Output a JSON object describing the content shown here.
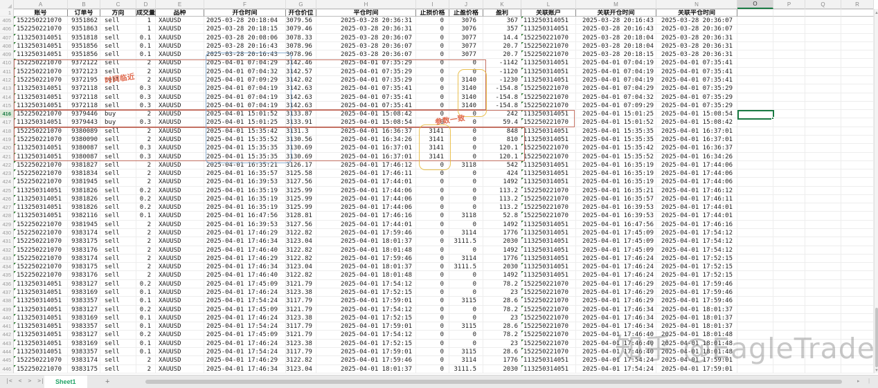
{
  "column_letters": [
    "A",
    "B",
    "C",
    "D",
    "E",
    "F",
    "G",
    "H",
    "I",
    "J",
    "K",
    "L",
    "M",
    "N",
    "O",
    "P",
    "Q",
    "R"
  ],
  "selected_column": "O",
  "selected_cell": {
    "row": 416,
    "col": "O"
  },
  "header_row_number": "1",
  "headers": [
    "账号",
    "订单号",
    "方向",
    "成交量",
    "品种",
    "开仓时间",
    "开仓价位",
    "平仓时间",
    "止损价格",
    "止盈价格",
    "盈利",
    "关联账户",
    "关联开仓时间",
    "关联平仓时间"
  ],
  "rows": [
    {
      "n": 405,
      "c": [
        "152250221070",
        "9351862",
        "sell",
        "1",
        "XAUUSD",
        "2025-03-28 20:18:04",
        "3079.56",
        "2025-03-28 20:36:31",
        "0",
        "3076",
        "367",
        "113250314051",
        "2025-03-28 20:16:43",
        "2025-03-28 20:36:07"
      ]
    },
    {
      "n": 406,
      "c": [
        "152250221070",
        "9351863",
        "sell",
        "1",
        "XAUUSD",
        "2025-03-28 20:18:15",
        "3079.46",
        "2025-03-28 20:36:31",
        "0",
        "3076",
        "357",
        "113250314051",
        "2025-03-28 20:16:43",
        "2025-03-28 20:36:07"
      ]
    },
    {
      "n": 407,
      "c": [
        "113250314051",
        "9351818",
        "sell",
        "0.1",
        "XAUUSD",
        "2025-03-28 20:08:06",
        "3078.33",
        "2025-03-28 20:36:07",
        "0",
        "3077",
        "14.4",
        "152250221070",
        "2025-03-28 20:18:04",
        "2025-03-28 20:36:31"
      ]
    },
    {
      "n": 408,
      "c": [
        "113250314051",
        "9351856",
        "sell",
        "0.1",
        "XAUUSD",
        "2025-03-28 20:16:43",
        "3078.96",
        "2025-03-28 20:36:07",
        "0",
        "3077",
        "20.7",
        "152250221070",
        "2025-03-28 20:18:04",
        "2025-03-28 20:36:31"
      ]
    },
    {
      "n": 409,
      "c": [
        "113250314051",
        "9351856",
        "sell",
        "0.1",
        "XAUUSD",
        "2025-03-28 20:16:43",
        "3078.96",
        "2025-03-28 20:36:07",
        "0",
        "3077",
        "20.7",
        "152250221070",
        "2025-03-28 20:18:15",
        "2025-03-28 20:36:31"
      ]
    },
    {
      "n": 410,
      "c": [
        "152250221070",
        "9372122",
        "sell",
        "2",
        "XAUUSD",
        "2025-04-01 07:04:29",
        "3142.46",
        "2025-04-01 07:35:29",
        "0",
        "0",
        "-1142",
        "113250314051",
        "2025-04-01 07:04:19",
        "2025-04-01 07:35:41"
      ]
    },
    {
      "n": 411,
      "c": [
        "152250221070",
        "9372123",
        "sell",
        "2",
        "XAUUSD",
        "2025-04-01 07:04:32",
        "3142.57",
        "2025-04-01 07:35:29",
        "0",
        "0",
        "-1120",
        "113250314051",
        "2025-04-01 07:04:19",
        "2025-04-01 07:35:41"
      ]
    },
    {
      "n": 412,
      "c": [
        "152250221070",
        "9372195",
        "sell",
        "2",
        "XAUUSD",
        "2025-04-01 07:09:29",
        "3142.02",
        "2025-04-01 07:35:29",
        "0",
        "3140",
        "-1230",
        "113250314051",
        "2025-04-01 07:04:19",
        "2025-04-01 07:35:41"
      ]
    },
    {
      "n": 413,
      "c": [
        "113250314051",
        "9372118",
        "sell",
        "0.3",
        "XAUUSD",
        "2025-04-01 07:04:19",
        "3142.63",
        "2025-04-01 07:35:41",
        "0",
        "3140",
        "-154.8",
        "152250221070",
        "2025-04-01 07:04:29",
        "2025-04-01 07:35:29"
      ]
    },
    {
      "n": 414,
      "c": [
        "113250314051",
        "9372118",
        "sell",
        "0.3",
        "XAUUSD",
        "2025-04-01 07:04:19",
        "3142.63",
        "2025-04-01 07:35:41",
        "0",
        "3140",
        "-154.8",
        "152250221070",
        "2025-04-01 07:04:32",
        "2025-04-01 07:35:29"
      ]
    },
    {
      "n": 415,
      "c": [
        "113250314051",
        "9372118",
        "sell",
        "0.3",
        "XAUUSD",
        "2025-04-01 07:04:19",
        "3142.63",
        "2025-04-01 07:35:41",
        "0",
        "3140",
        "-154.8",
        "152250221070",
        "2025-04-01 07:09:29",
        "2025-04-01 07:35:29"
      ]
    },
    {
      "n": 416,
      "c": [
        "152250221070",
        "9379446",
        "buy",
        "2",
        "XAUUSD",
        "2025-04-01 15:01:52",
        "3133.87",
        "2025-04-01 15:08:42",
        "0",
        "0",
        "242",
        "113250314051",
        "2025-04-01 15:01:25",
        "2025-04-01 15:08:54"
      ]
    },
    {
      "n": 417,
      "c": [
        "113250314051",
        "9379443",
        "buy",
        "0.3",
        "XAUUSD",
        "2025-04-01 15:01:25",
        "3133.91",
        "2025-04-01 15:08:54",
        "0",
        "0",
        "59.4",
        "152250221070",
        "2025-04-01 15:01:52",
        "2025-04-01 15:08:42"
      ]
    },
    {
      "n": 418,
      "c": [
        "152250221070",
        "9380089",
        "sell",
        "2",
        "XAUUSD",
        "2025-04-01 15:35:42",
        "3131.3",
        "2025-04-01 16:36:37",
        "3141",
        "0",
        "848",
        "113250314051",
        "2025-04-01 15:35:35",
        "2025-04-01 16:37:01"
      ]
    },
    {
      "n": 419,
      "c": [
        "152250221070",
        "9380090",
        "sell",
        "2",
        "XAUUSD",
        "2025-04-01 15:35:52",
        "3130.56",
        "2025-04-01 16:34:26",
        "3141",
        "0",
        "810",
        "113250314051",
        "2025-04-01 15:35:35",
        "2025-04-01 16:37:01"
      ]
    },
    {
      "n": 420,
      "c": [
        "113250314051",
        "9380087",
        "sell",
        "0.3",
        "XAUUSD",
        "2025-04-01 15:35:35",
        "3130.69",
        "2025-04-01 16:37:01",
        "3141",
        "0",
        "120.1",
        "152250221070",
        "2025-04-01 15:35:42",
        "2025-04-01 16:36:37"
      ]
    },
    {
      "n": 421,
      "c": [
        "113250314051",
        "9380087",
        "sell",
        "0.3",
        "XAUUSD",
        "2025-04-01 15:35:35",
        "3130.69",
        "2025-04-01 16:37:01",
        "3141",
        "0",
        "120.1",
        "152250221070",
        "2025-04-01 15:35:52",
        "2025-04-01 16:34:26"
      ]
    },
    {
      "n": 422,
      "c": [
        "152250221070",
        "9381827",
        "sell",
        "2",
        "XAUUSD",
        "2025-04-01 16:35:21",
        "3126.17",
        "2025-04-01 17:46:12",
        "0",
        "3118",
        "542",
        "113250314051",
        "2025-04-01 16:35:19",
        "2025-04-01 17:44:06"
      ]
    },
    {
      "n": 423,
      "c": [
        "152250221070",
        "9381834",
        "sell",
        "2",
        "XAUUSD",
        "2025-04-01 16:35:57",
        "3125.58",
        "2025-04-01 17:46:11",
        "0",
        "0",
        "424",
        "113250314051",
        "2025-04-01 16:35:19",
        "2025-04-01 17:44:06"
      ]
    },
    {
      "n": 424,
      "c": [
        "152250221070",
        "9381945",
        "sell",
        "2",
        "XAUUSD",
        "2025-04-01 16:39:53",
        "3127.56",
        "2025-04-01 17:44:01",
        "0",
        "0",
        "1492",
        "113250314051",
        "2025-04-01 16:35:19",
        "2025-04-01 17:44:06"
      ]
    },
    {
      "n": 425,
      "c": [
        "113250314051",
        "9381826",
        "sell",
        "0.2",
        "XAUUSD",
        "2025-04-01 16:35:19",
        "3125.99",
        "2025-04-01 17:44:06",
        "0",
        "0",
        "113.2",
        "152250221070",
        "2025-04-01 16:35:21",
        "2025-04-01 17:46:12"
      ]
    },
    {
      "n": 426,
      "c": [
        "113250314051",
        "9381826",
        "sell",
        "0.2",
        "XAUUSD",
        "2025-04-01 16:35:19",
        "3125.99",
        "2025-04-01 17:44:06",
        "0",
        "0",
        "113.2",
        "152250221070",
        "2025-04-01 16:35:57",
        "2025-04-01 17:46:11"
      ]
    },
    {
      "n": 427,
      "c": [
        "113250314051",
        "9381826",
        "sell",
        "0.2",
        "XAUUSD",
        "2025-04-01 16:35:19",
        "3125.99",
        "2025-04-01 17:44:06",
        "0",
        "0",
        "113.2",
        "152250221070",
        "2025-04-01 16:39:53",
        "2025-04-01 17:44:01"
      ]
    },
    {
      "n": 428,
      "c": [
        "113250314051",
        "9382116",
        "sell",
        "0.1",
        "XAUUSD",
        "2025-04-01 16:47:56",
        "3128.81",
        "2025-04-01 17:46:16",
        "0",
        "3118",
        "52.8",
        "152250221070",
        "2025-04-01 16:39:53",
        "2025-04-01 17:44:01"
      ]
    },
    {
      "n": 429,
      "c": [
        "152250221070",
        "9381945",
        "sell",
        "2",
        "XAUUSD",
        "2025-04-01 16:39:53",
        "3127.56",
        "2025-04-01 17:44:01",
        "0",
        "0",
        "1492",
        "113250314051",
        "2025-04-01 16:47:56",
        "2025-04-01 17:46:16"
      ]
    },
    {
      "n": 430,
      "c": [
        "152250221070",
        "9383174",
        "sell",
        "2",
        "XAUUSD",
        "2025-04-01 17:46:29",
        "3122.82",
        "2025-04-01 17:59:46",
        "0",
        "3114",
        "1776",
        "113250314051",
        "2025-04-01 17:45:09",
        "2025-04-01 17:54:12"
      ]
    },
    {
      "n": 431,
      "c": [
        "152250221070",
        "9383175",
        "sell",
        "2",
        "XAUUSD",
        "2025-04-01 17:46:34",
        "3123.04",
        "2025-04-01 18:01:37",
        "0",
        "3111.5",
        "2030",
        "113250314051",
        "2025-04-01 17:45:09",
        "2025-04-01 17:54:12"
      ]
    },
    {
      "n": 432,
      "c": [
        "152250221070",
        "9383176",
        "sell",
        "2",
        "XAUUSD",
        "2025-04-01 17:46:40",
        "3122.82",
        "2025-04-01 18:01:48",
        "0",
        "0",
        "1492",
        "113250314051",
        "2025-04-01 17:45:09",
        "2025-04-01 17:54:12"
      ]
    },
    {
      "n": 433,
      "c": [
        "152250221070",
        "9383174",
        "sell",
        "2",
        "XAUUSD",
        "2025-04-01 17:46:29",
        "3122.82",
        "2025-04-01 17:59:46",
        "0",
        "3114",
        "1776",
        "113250314051",
        "2025-04-01 17:46:24",
        "2025-04-01 17:52:15"
      ]
    },
    {
      "n": 434,
      "c": [
        "152250221070",
        "9383175",
        "sell",
        "2",
        "XAUUSD",
        "2025-04-01 17:46:34",
        "3123.04",
        "2025-04-01 18:01:37",
        "0",
        "3111.5",
        "2030",
        "113250314051",
        "2025-04-01 17:46:24",
        "2025-04-01 17:52:15"
      ]
    },
    {
      "n": 435,
      "c": [
        "152250221070",
        "9383176",
        "sell",
        "2",
        "XAUUSD",
        "2025-04-01 17:46:40",
        "3122.82",
        "2025-04-01 18:01:48",
        "0",
        "0",
        "1492",
        "113250314051",
        "2025-04-01 17:46:24",
        "2025-04-01 17:52:15"
      ]
    },
    {
      "n": 436,
      "c": [
        "113250314051",
        "9383127",
        "sell",
        "0.2",
        "XAUUSD",
        "2025-04-01 17:45:09",
        "3121.79",
        "2025-04-01 17:54:12",
        "0",
        "0",
        "78.2",
        "152250221070",
        "2025-04-01 17:46:29",
        "2025-04-01 17:59:46"
      ]
    },
    {
      "n": 437,
      "c": [
        "113250314051",
        "9383169",
        "sell",
        "0.1",
        "XAUUSD",
        "2025-04-01 17:46:24",
        "3123.38",
        "2025-04-01 17:52:15",
        "0",
        "0",
        "23",
        "152250221070",
        "2025-04-01 17:46:29",
        "2025-04-01 17:59:46"
      ]
    },
    {
      "n": 438,
      "c": [
        "113250314051",
        "9383357",
        "sell",
        "0.1",
        "XAUUSD",
        "2025-04-01 17:54:24",
        "3117.79",
        "2025-04-01 17:59:01",
        "0",
        "3115",
        "28.6",
        "152250221070",
        "2025-04-01 17:46:29",
        "2025-04-01 17:59:46"
      ]
    },
    {
      "n": 439,
      "c": [
        "113250314051",
        "9383127",
        "sell",
        "0.2",
        "XAUUSD",
        "2025-04-01 17:45:09",
        "3121.79",
        "2025-04-01 17:54:12",
        "0",
        "0",
        "78.2",
        "152250221070",
        "2025-04-01 17:46:34",
        "2025-04-01 18:01:37"
      ]
    },
    {
      "n": 440,
      "c": [
        "113250314051",
        "9383169",
        "sell",
        "0.1",
        "XAUUSD",
        "2025-04-01 17:46:24",
        "3123.38",
        "2025-04-01 17:52:15",
        "0",
        "0",
        "23",
        "152250221070",
        "2025-04-01 17:46:34",
        "2025-04-01 18:01:37"
      ]
    },
    {
      "n": 441,
      "c": [
        "113250314051",
        "9383357",
        "sell",
        "0.1",
        "XAUUSD",
        "2025-04-01 17:54:24",
        "3117.79",
        "2025-04-01 17:59:01",
        "0",
        "3115",
        "28.6",
        "152250221070",
        "2025-04-01 17:46:34",
        "2025-04-01 18:01:37"
      ]
    },
    {
      "n": 442,
      "c": [
        "113250314051",
        "9383127",
        "sell",
        "0.2",
        "XAUUSD",
        "2025-04-01 17:45:09",
        "3121.79",
        "2025-04-01 17:54:12",
        "0",
        "0",
        "78.2",
        "152250221070",
        "2025-04-01 17:46:40",
        "2025-04-01 18:01:48"
      ]
    },
    {
      "n": 443,
      "c": [
        "113250314051",
        "9383169",
        "sell",
        "0.1",
        "XAUUSD",
        "2025-04-01 17:46:24",
        "3123.38",
        "2025-04-01 17:52:15",
        "0",
        "0",
        "23",
        "152250221070",
        "2025-04-01 17:46:40",
        "2025-04-01 18:01:48"
      ]
    },
    {
      "n": 444,
      "c": [
        "113250314051",
        "9383357",
        "sell",
        "0.1",
        "XAUUSD",
        "2025-04-01 17:54:24",
        "3117.79",
        "2025-04-01 17:59:01",
        "0",
        "3115",
        "28.6",
        "152250221070",
        "2025-04-01 17:46:40",
        "2025-04-01 18:01:48"
      ]
    },
    {
      "n": 445,
      "c": [
        "152250221070",
        "9383174",
        "sell",
        "2",
        "XAUUSD",
        "2025-04-01 17:46:29",
        "3122.82",
        "2025-04-01 17:59:46",
        "0",
        "3114",
        "1776",
        "113250314051",
        "2025-04-01 17:54:24",
        "2025-04-01 17:59:01"
      ]
    },
    {
      "n": 446,
      "c": [
        "152250221070",
        "9383175",
        "sell",
        "2",
        "XAUUSD",
        "2025-04-01 17:46:34",
        "3123.04",
        "2025-04-01 18:01:37",
        "0",
        "3111.5",
        "2030",
        "113250314051",
        "2025-04-01 17:54:24",
        "2025-04-01 17:59:01"
      ]
    }
  ],
  "annotations": {
    "time_label": "时间临近",
    "param_label": "参数一致"
  },
  "watermark": "知乎 @EagleTrader",
  "sheet_bar": {
    "nav_first": "|<",
    "nav_prev": "<",
    "nav_next": ">",
    "nav_last": ">|",
    "active_tab": "Sheet1",
    "add_sheet": "+",
    "h_end_arrow": "▸",
    "h_end_bar": "|"
  },
  "scrollbar": {
    "up_arrow": "▲",
    "down_arrow": "▼"
  },
  "colors": {
    "selection_green": "#1a7a43",
    "tab_green": "#21a366",
    "annotation_red": "#ba5848",
    "annotation_text_red": "#e0684c",
    "annotation_yellow": "#e8ba3e",
    "annotation_blue": "#7ea6cd",
    "comment_triangle_green": "#2e7d32"
  }
}
